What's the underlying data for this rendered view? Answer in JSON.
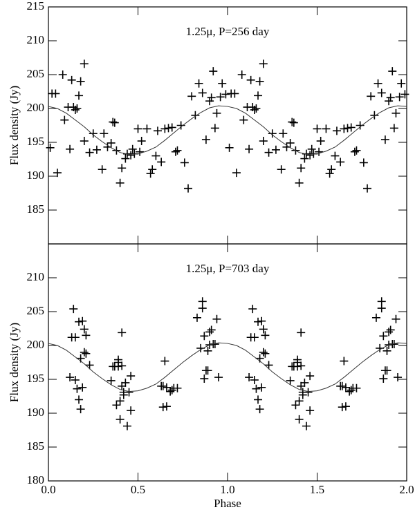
{
  "chart_data": [
    {
      "type": "scatter",
      "title": "1.25μ, P=256 day",
      "y_label": "Flux density (Jy)",
      "xlim": [
        0,
        2
      ],
      "xticks": [
        0,
        0.5,
        1,
        1.5,
        2
      ],
      "xtick_labels": false,
      "ylim": [
        180,
        215
      ],
      "yticks": [
        185,
        190,
        195,
        200,
        205,
        210,
        215
      ],
      "series": [
        {
          "type": "scatter",
          "color": "#000000",
          "x": [
            0.01,
            0.02,
            0.04,
            0.05,
            0.08,
            0.09,
            0.11,
            0.12,
            0.13,
            0.14,
            0.15,
            0.16,
            0.17,
            0.18,
            0.2,
            0.2,
            0.23,
            0.25,
            0.27,
            0.3,
            0.31,
            0.33,
            0.35,
            0.36,
            0.37,
            0.38,
            0.4,
            0.41,
            0.43,
            0.44,
            0.46,
            0.47,
            0.48,
            0.5,
            0.51,
            0.52,
            0.55,
            0.57,
            0.58,
            0.6,
            0.61,
            0.63,
            0.65,
            0.67,
            0.69,
            0.71,
            0.72,
            0.74,
            0.76,
            0.78,
            0.8,
            0.82,
            0.84,
            0.86,
            0.88,
            0.9,
            0.91,
            0.92,
            0.93,
            0.94,
            0.96,
            0.97,
            0.99,
            1.01,
            1.02,
            1.04,
            1.05,
            1.08,
            1.09,
            1.11,
            1.12,
            1.13,
            1.14,
            1.15,
            1.16,
            1.17,
            1.18,
            1.2,
            1.2,
            1.23,
            1.25,
            1.27,
            1.3,
            1.31,
            1.33,
            1.35,
            1.36,
            1.37,
            1.38,
            1.4,
            1.41,
            1.43,
            1.44,
            1.46,
            1.47,
            1.48,
            1.5,
            1.51,
            1.52,
            1.55,
            1.57,
            1.58,
            1.6,
            1.61,
            1.63,
            1.65,
            1.67,
            1.69,
            1.71,
            1.72,
            1.74,
            1.76,
            1.78,
            1.8,
            1.82,
            1.84,
            1.86,
            1.88,
            1.9,
            1.91,
            1.92,
            1.93,
            1.94,
            1.96,
            1.97,
            1.99
          ],
          "values": [
            194.2,
            202.2,
            202.2,
            190.5,
            205,
            198.3,
            200.2,
            194,
            204.2,
            200.2,
            199.8,
            200,
            201.9,
            204,
            206.6,
            195.2,
            193.5,
            196.3,
            193.9,
            191,
            196.3,
            194.3,
            194.9,
            198,
            197.9,
            193.8,
            189,
            191.2,
            192.6,
            193.3,
            193.1,
            194,
            193.3,
            197,
            193.6,
            195.2,
            197,
            190.4,
            191,
            193,
            196.7,
            192.1,
            197,
            197.1,
            197.2,
            193.6,
            193.8,
            197.5,
            192,
            188.2,
            201.8,
            199,
            203.7,
            202.3,
            195.4,
            201.1,
            201.6,
            205.5,
            197.1,
            199.3,
            201.7,
            203.7,
            202.1,
            194.2,
            202.2,
            202.2,
            190.5,
            205,
            198.3,
            200.2,
            194,
            204.2,
            200.2,
            199.8,
            200,
            201.9,
            204,
            206.6,
            195.2,
            193.5,
            196.3,
            193.9,
            191,
            196.3,
            194.3,
            194.9,
            198,
            197.9,
            193.8,
            189,
            191.2,
            192.6,
            193.3,
            193.1,
            194,
            193.3,
            197,
            193.6,
            195.2,
            197,
            190.4,
            191,
            193,
            196.7,
            192.1,
            197,
            197.1,
            197.2,
            193.6,
            193.8,
            197.5,
            192,
            188.2,
            201.8,
            199,
            203.7,
            202.3,
            195.4,
            201.1,
            201.6,
            205.5,
            197.1,
            199.3,
            201.7,
            203.7,
            202.1
          ]
        },
        {
          "type": "line",
          "color": "#333333",
          "x": [
            0,
            0.05,
            0.1,
            0.15,
            0.2,
            0.25,
            0.3,
            0.35,
            0.4,
            0.45,
            0.5,
            0.55,
            0.6,
            0.65,
            0.7,
            0.75,
            0.8,
            0.85,
            0.9,
            0.95,
            1,
            1.05,
            1.1,
            1.15,
            1.2,
            1.25,
            1.3,
            1.35,
            1.4,
            1.45,
            1.5,
            1.55,
            1.6,
            1.65,
            1.7,
            1.75,
            1.8,
            1.85,
            1.9,
            1.95,
            2
          ],
          "values": [
            200.3,
            200,
            199.3,
            198.3,
            197.3,
            196.1,
            195.1,
            194.2,
            193.5,
            193.2,
            193.3,
            193.7,
            194.3,
            195.3,
            196.4,
            197.5,
            198.5,
            199.4,
            200.1,
            200.4,
            200.3,
            200,
            199.3,
            198.3,
            197.3,
            196.1,
            195.1,
            194.2,
            193.5,
            193.2,
            193.3,
            193.7,
            194.3,
            195.3,
            196.4,
            197.5,
            198.5,
            199.4,
            200.1,
            200.4,
            200.3
          ]
        }
      ]
    },
    {
      "type": "scatter",
      "title": "1.25μ, P=703 day",
      "y_label": "Flux density (Jy)",
      "x_label": "Phase",
      "xlim": [
        0,
        2
      ],
      "xticks": [
        {
          "value": 0,
          "label": "0.0"
        },
        {
          "value": 0.5,
          "label": "0.5"
        },
        {
          "value": 1,
          "label": "1.0"
        },
        {
          "value": 1.5,
          "label": "1.5"
        },
        {
          "value": 2,
          "label": "2.0"
        }
      ],
      "xtick_labels": true,
      "ylim": [
        180,
        215
      ],
      "yticks": [
        180,
        185,
        190,
        195,
        200,
        205,
        210
      ],
      "series": [
        {
          "type": "scatter",
          "color": "#000000",
          "x": [
            0.12,
            0.13,
            0.14,
            0.15,
            0.15,
            0.16,
            0.17,
            0.17,
            0.18,
            0.18,
            0.19,
            0.19,
            0.2,
            0.2,
            0.21,
            0.21,
            0.23,
            0.35,
            0.36,
            0.37,
            0.38,
            0.39,
            0.39,
            0.4,
            0.39,
            0.41,
            0.41,
            0.4,
            0.41,
            0.42,
            0.42,
            0.44,
            0.43,
            0.46,
            0.45,
            0.46,
            0.63,
            0.64,
            0.64,
            0.65,
            0.66,
            0.66,
            0.68,
            0.69,
            0.7,
            0.72,
            0.83,
            0.85,
            0.86,
            0.87,
            0.87,
            0.86,
            0.89,
            0.88,
            0.9,
            0.9,
            0.89,
            0.91,
            0.92,
            0.93,
            0.95,
            0.94,
            1.12,
            1.13,
            1.14,
            1.15,
            1.15,
            1.16,
            1.17,
            1.17,
            1.18,
            1.18,
            1.19,
            1.19,
            1.2,
            1.2,
            1.21,
            1.21,
            1.23,
            1.35,
            1.36,
            1.37,
            1.38,
            1.39,
            1.39,
            1.4,
            1.39,
            1.41,
            1.41,
            1.4,
            1.41,
            1.42,
            1.42,
            1.44,
            1.43,
            1.46,
            1.45,
            1.46,
            1.63,
            1.64,
            1.64,
            1.65,
            1.66,
            1.66,
            1.68,
            1.69,
            1.7,
            1.72,
            1.83,
            1.85,
            1.86,
            1.87,
            1.87,
            1.86,
            1.89,
            1.88,
            1.9,
            1.9,
            1.89,
            1.91,
            1.92,
            1.93,
            1.95,
            1.94
          ],
          "values": [
            195.3,
            201.2,
            205.4,
            201.2,
            194.9,
            193.6,
            203.5,
            192,
            190.6,
            198.1,
            203.6,
            193.8,
            199,
            202.4,
            201.5,
            198.8,
            197.1,
            194.8,
            196.9,
            196.9,
            191.2,
            196.9,
            197.5,
            189.1,
            197.9,
            201.9,
            197,
            191.8,
            194,
            193.1,
            192.7,
            188.1,
            194.5,
            190.4,
            193.1,
            195.5,
            194,
            190.9,
            194,
            197.7,
            191,
            193.8,
            193.2,
            193.4,
            193.7,
            193.7,
            204.1,
            199.6,
            206.5,
            195.1,
            201.4,
            205.5,
            199.2,
            196.3,
            200.1,
            202,
            196.3,
            202.3,
            200.2,
            200.2,
            195.3,
            203.9,
            195.3,
            201.2,
            205.4,
            201.2,
            194.9,
            193.6,
            203.5,
            192,
            190.6,
            198.1,
            203.6,
            193.8,
            199,
            202.4,
            201.5,
            198.8,
            197.1,
            194.8,
            196.9,
            196.9,
            191.2,
            196.9,
            197.5,
            189.1,
            197.9,
            201.9,
            197,
            191.8,
            194,
            193.1,
            192.7,
            188.1,
            194.5,
            190.4,
            193.1,
            195.5,
            194,
            190.9,
            194,
            197.7,
            191,
            193.8,
            193.2,
            193.4,
            193.7,
            193.7,
            204.1,
            199.6,
            206.5,
            195.1,
            201.4,
            205.5,
            199.2,
            196.3,
            200.1,
            202,
            196.3,
            202.3,
            200.2,
            200.2,
            195.3,
            203.9
          ]
        },
        {
          "type": "line",
          "color": "#333333",
          "x": [
            0,
            0.05,
            0.1,
            0.15,
            0.2,
            0.25,
            0.3,
            0.35,
            0.4,
            0.45,
            0.5,
            0.55,
            0.6,
            0.65,
            0.7,
            0.75,
            0.8,
            0.85,
            0.9,
            0.95,
            1,
            1.05,
            1.1,
            1.15,
            1.2,
            1.25,
            1.3,
            1.35,
            1.4,
            1.45,
            1.5,
            1.55,
            1.6,
            1.65,
            1.7,
            1.75,
            1.8,
            1.85,
            1.9,
            1.95,
            2
          ],
          "values": [
            200.3,
            200,
            199.3,
            198.3,
            197.3,
            196.1,
            195.1,
            194.2,
            193.5,
            193.2,
            193.3,
            193.7,
            194.3,
            195.3,
            196.4,
            197.5,
            198.5,
            199.4,
            200.1,
            200.4,
            200.3,
            200,
            199.3,
            198.3,
            197.3,
            196.1,
            195.1,
            194.2,
            193.5,
            193.2,
            193.3,
            193.7,
            194.3,
            195.3,
            196.4,
            197.5,
            198.5,
            199.4,
            200.1,
            200.4,
            200.3
          ]
        }
      ]
    }
  ]
}
